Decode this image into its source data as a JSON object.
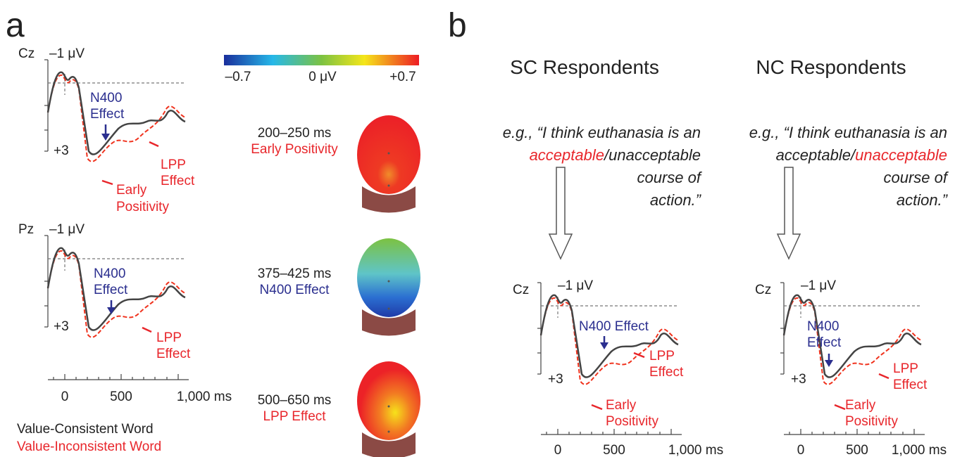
{
  "panel_a": {
    "label": "a",
    "plots": [
      {
        "electrode": "Cz",
        "top_label": "–1 μV",
        "bottom_label": "+3",
        "n400": [
          "N400",
          "Effect"
        ],
        "lpp": [
          "LPP",
          "Effect"
        ],
        "early": [
          "Early",
          "Positivity"
        ]
      },
      {
        "electrode": "Pz",
        "top_label": "–1 μV",
        "bottom_label": "+3",
        "n400": [
          "N400",
          "Effect"
        ],
        "lpp": [
          "LPP",
          "Effect"
        ]
      }
    ],
    "x_ticks": [
      "0",
      "500",
      "1,000 ms"
    ],
    "legend": [
      "Value-Consistent Word",
      "Value-Inconsistent Word"
    ],
    "colorbar": [
      "–0.7",
      "0 μV",
      "+0.7"
    ],
    "topomaps": [
      {
        "window": "200–250 ms",
        "effect": "Early Positivity"
      },
      {
        "window": "375–425 ms",
        "effect": "N400 Effect"
      },
      {
        "window": "500–650 ms",
        "effect": "LPP Effect"
      }
    ]
  },
  "panel_b": {
    "label": "b",
    "columns": [
      {
        "title": "SC Respondents",
        "quote": [
          "e.g., “I think euthanasia is an",
          [
            "acceptable",
            "/",
            "unacceptable"
          ],
          "course of",
          "action.”"
        ],
        "electrode": "Cz",
        "top_label": "–1 μV",
        "bottom_label": "+3",
        "n400": "N400 Effect",
        "lpp": [
          "LPP",
          "Effect"
        ],
        "early": [
          "Early",
          "Positivity"
        ],
        "x_ticks": [
          "0",
          "500",
          "1,000 ms"
        ]
      },
      {
        "title": "NC Respondents",
        "quote": [
          "e.g., “I think euthanasia is an",
          [
            "acceptable",
            "/",
            "unacceptable"
          ],
          "course of",
          "action.”"
        ],
        "electrode": "Cz",
        "top_label": "–1 μV",
        "bottom_label": "+3",
        "n400": [
          "N400",
          "Effect"
        ],
        "lpp": [
          "LPP",
          "Effect"
        ],
        "early": [
          "Early",
          "Positivity"
        ],
        "x_ticks": [
          "0",
          "500",
          "1,000 ms"
        ]
      }
    ]
  }
}
